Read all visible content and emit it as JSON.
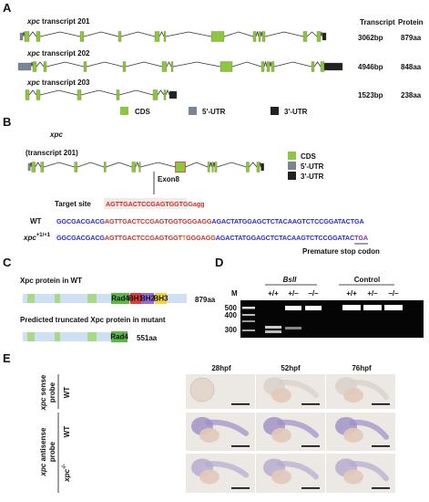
{
  "panel_a": {
    "label": "A",
    "header": {
      "transcript": "Transcript",
      "protein": "Protein"
    },
    "rows": [
      {
        "gene": "xpc",
        "name": "transcript 201",
        "transcript": "3062bp",
        "protein": "879aa"
      },
      {
        "gene": "xpc",
        "name": "transcript 202",
        "transcript": "4946bp",
        "protein": "848aa"
      },
      {
        "gene": "xpc",
        "name": "transcript 203",
        "transcript": "1523bp",
        "protein": "238aa"
      }
    ],
    "legend": [
      "CDS",
      "5'-UTR",
      "3'-UTR"
    ]
  },
  "panel_b": {
    "label": "B",
    "gene": "xpc",
    "transcript": "(transcript 201)",
    "legend": [
      "CDS",
      "5'-UTR",
      "3'-UTR"
    ],
    "exon": "Exon8",
    "target_label": "Target site",
    "target_seq": "AGTTGACTCCGAGTGGTGGagg",
    "wt_label": "WT",
    "wt_seq": [
      "GGCGACGACG",
      "AGTTGACTCCGAGTGGTGGGAGG",
      "AGACTATGGAGCTCTACAAGTCTCCGGATACTGA"
    ],
    "mut_label": {
      "gene": "xpc",
      "sup": "+1/+1"
    },
    "mut_seq": [
      "GGCGACGACG",
      "AGTTGACTCCGAGTGGT",
      "T",
      "GGGAGG",
      "AGACTATGGAGCTCTACAAGTCTCCGGATAC",
      "TGA"
    ],
    "stop_label": "Premature stop codon"
  },
  "panel_c": {
    "label": "C",
    "wt_title": "Xpc protein in WT",
    "wt_length": "879aa",
    "mut_title": "Predicted truncated Xpc protein in mutant",
    "mut_length": "551aa",
    "domains": [
      "Rad4",
      "BH1",
      "BH2",
      "BH3"
    ]
  },
  "panel_d": {
    "label": "D",
    "enzyme": "BslI",
    "control": "Control",
    "marker": "M",
    "genotypes": [
      "+/+",
      "+/–",
      "–/–"
    ],
    "ladder": [
      "500",
      "400",
      "300"
    ]
  },
  "panel_e": {
    "label": "E",
    "stages": [
      "28hpf",
      "52hpf",
      "76hpf"
    ],
    "sense": {
      "gene": "xpc",
      "text": " sense",
      "line2": "probe"
    },
    "antisense": {
      "gene": "xpc",
      "text": " antisense",
      "line2": "probe"
    },
    "rows": [
      {
        "genotype": "WT"
      },
      {
        "genotype": "WT"
      },
      {
        "genotype": {
          "gene": "xpc",
          "sup": "-/-"
        }
      }
    ]
  }
}
